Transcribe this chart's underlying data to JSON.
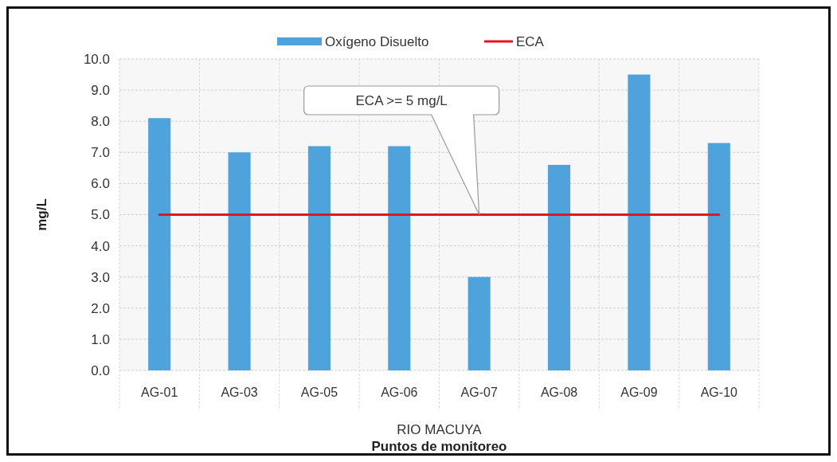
{
  "chart_data": {
    "type": "bar",
    "categories": [
      "AG-01",
      "AG-03",
      "AG-05",
      "AG-06",
      "AG-07",
      "AG-08",
      "AG-09",
      "AG-10"
    ],
    "series": [
      {
        "name": "Oxígeno Disuelto",
        "color": "#4fa3dc",
        "values": [
          8.1,
          7.0,
          7.2,
          7.2,
          3.0,
          6.6,
          9.5,
          7.3
        ]
      },
      {
        "name": "ECA",
        "type": "line",
        "color": "#e0181e",
        "values": [
          5,
          5,
          5,
          5,
          5,
          5,
          5,
          5
        ]
      }
    ],
    "ylabel": "mg/L",
    "xlabel": "Puntos de monitoreo",
    "annotations": [
      "ECA >= 5 mg/L",
      "RIO MACUYA"
    ],
    "ylim": [
      0,
      10
    ],
    "yticks": [
      {
        "value": 0,
        "label": "0.0"
      },
      {
        "value": 1,
        "label": "1.0"
      },
      {
        "value": 2,
        "label": "2.0"
      },
      {
        "value": 3,
        "label": "3.0"
      },
      {
        "value": 4,
        "label": "4.0"
      },
      {
        "value": 5,
        "label": "5.0"
      },
      {
        "value": 6,
        "label": "6.0"
      },
      {
        "value": 7,
        "label": "7.0"
      },
      {
        "value": 8,
        "label": "8.0"
      },
      {
        "value": 9,
        "label": "9.0"
      },
      {
        "value": 10,
        "label": "10.0"
      }
    ],
    "grid": true,
    "legend": "top",
    "marker": "none",
    "line_style": "solid"
  }
}
